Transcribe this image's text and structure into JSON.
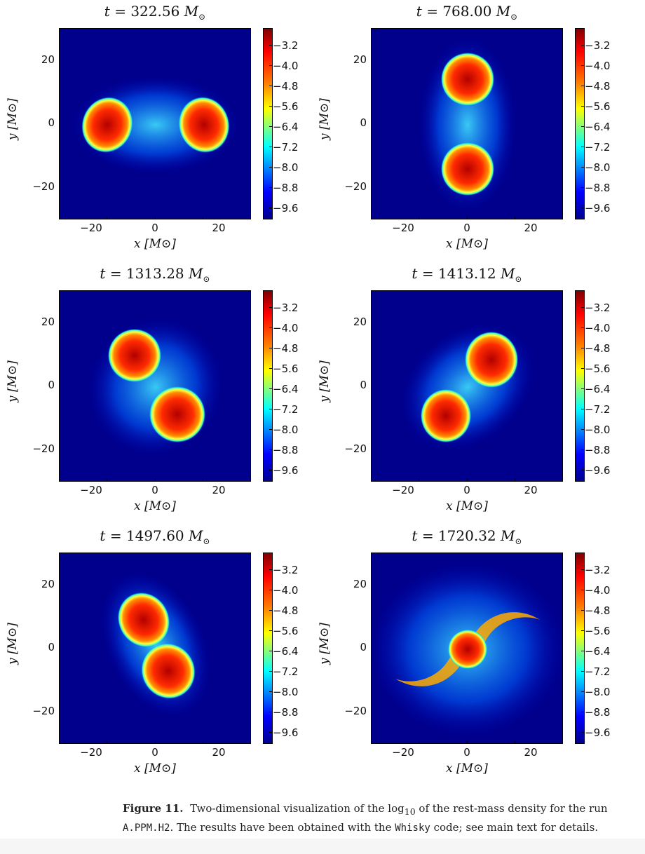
{
  "figure": {
    "panels": [
      {
        "time": "322.56",
        "unit": "M_⊙"
      },
      {
        "time": "768.00",
        "unit": "M_⊙"
      },
      {
        "time": "1313.28",
        "unit": "M_⊙"
      },
      {
        "time": "1413.12",
        "unit": "M_⊙"
      },
      {
        "time": "1497.60",
        "unit": "M_⊙"
      },
      {
        "time": "1720.32",
        "unit": "M_⊙"
      }
    ],
    "title_prefix": "t = ",
    "title_unit": "M",
    "title_sub": "⊙",
    "x_label": "x [M⊙]",
    "y_label": "y [M⊙]",
    "x_ticks": [
      "−20",
      "0",
      "20"
    ],
    "y_ticks": [
      "20",
      "0",
      "−20"
    ],
    "colorbar_ticks": [
      "−3.2",
      "−4.0",
      "−4.8",
      "−5.6",
      "−6.4",
      "−7.2",
      "−8.0",
      "−8.8",
      "−9.6"
    ]
  },
  "caption": {
    "label": "Figure 11.",
    "text_1": "Two-dimensional visualization of the log",
    "text_sub": "10",
    "text_2": " of the rest-mass density for the run",
    "run": "A.PPM.H2",
    "text_3": ". The results have been obtained with the ",
    "code": "Whisky",
    "text_4": " code; see main text for details."
  }
}
